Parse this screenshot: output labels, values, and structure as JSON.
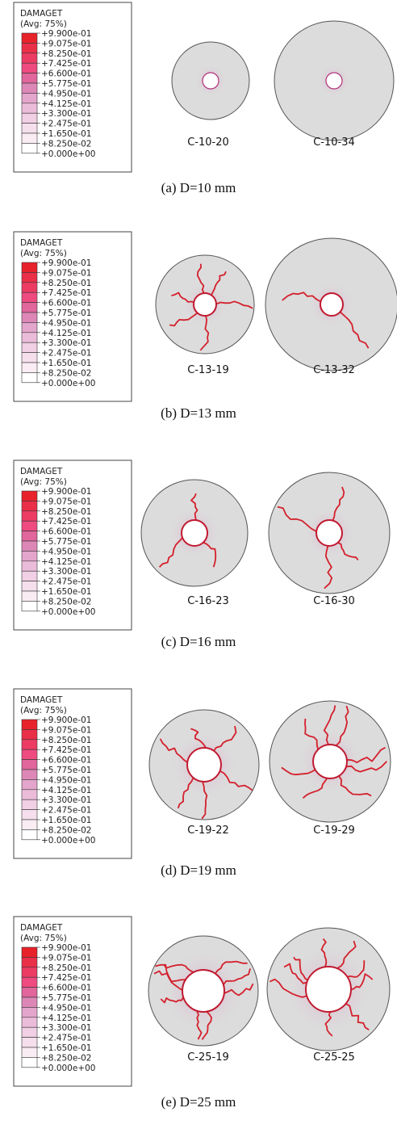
{
  "legend": {
    "title": "DAMAGET",
    "subtitle": "(Avg: 75%)",
    "labels": [
      "+9.900e-01",
      "+9.075e-01",
      "+8.250e-01",
      "+7.425e-01",
      "+6.600e-01",
      "+5.775e-01",
      "+4.950e-01",
      "+4.125e-01",
      "+3.300e-01",
      "+2.475e-01",
      "+1.650e-01",
      "+8.250e-02",
      "+0.000e+00"
    ]
  },
  "panels": [
    {
      "caption": "(a) D=10 mm",
      "specimens": [
        {
          "label": "C-10-20"
        },
        {
          "label": "C-10-34"
        }
      ]
    },
    {
      "caption": "(b) D=13 mm",
      "specimens": [
        {
          "label": "C-13-19"
        },
        {
          "label": "C-13-32"
        }
      ]
    },
    {
      "caption": "(c) D=16 mm",
      "specimens": [
        {
          "label": "C-16-23"
        },
        {
          "label": "C-16-30"
        }
      ]
    },
    {
      "caption": "(d) D=19 mm",
      "specimens": [
        {
          "label": "C-19-22"
        },
        {
          "label": "C-19-29"
        }
      ]
    },
    {
      "caption": "(e) D=25 mm",
      "specimens": [
        {
          "label": "C-25-19"
        },
        {
          "label": "C-25-25"
        }
      ]
    }
  ]
}
